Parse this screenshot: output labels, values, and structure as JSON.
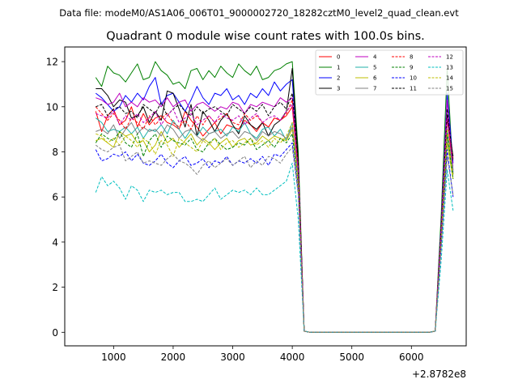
{
  "figure": {
    "suptitle": "Data file: modeM0/AS1A06_006T01_9000002720_18282cztM0_level2_quad_clean.evt",
    "offset_text": "+2.8782e8"
  },
  "chart_data": {
    "type": "line",
    "title": "Quadrant 0 module wise count rates with 100.0s bins.",
    "xlabel": "",
    "ylabel": "",
    "x_offset": 287820000,
    "xlim": [
      180,
      6920
    ],
    "ylim": [
      -0.6,
      12.65
    ],
    "xticks": [
      1000,
      2000,
      3000,
      4000,
      5000,
      6000
    ],
    "yticks": [
      0,
      2,
      4,
      6,
      8,
      10,
      12
    ],
    "grid": false,
    "legend": {
      "location": "upper right",
      "columns": 4
    },
    "x": [
      700,
      800,
      900,
      1000,
      1100,
      1200,
      1300,
      1400,
      1500,
      1600,
      1700,
      1800,
      1900,
      2000,
      2100,
      2200,
      2300,
      2400,
      2500,
      2600,
      2700,
      2800,
      2900,
      3000,
      3100,
      3200,
      3300,
      3400,
      3500,
      3600,
      3700,
      3800,
      3900,
      4000,
      4100,
      4200,
      4300,
      4400,
      4500,
      4600,
      4700,
      4800,
      4900,
      5000,
      5100,
      5200,
      5300,
      5400,
      5500,
      5600,
      5700,
      5800,
      5900,
      6000,
      6100,
      6200,
      6300,
      6400,
      6500,
      6600,
      6700
    ],
    "series": [
      {
        "name": "0",
        "color": "#ff0000",
        "dash": false,
        "values": [
          9.8,
          8.9,
          9.6,
          9.9,
          9.2,
          9.4,
          10.0,
          9.1,
          9.7,
          9.2,
          9.5,
          9.6,
          9.3,
          9.2,
          9.0,
          9.8,
          9.4,
          9.1,
          8.7,
          9.0,
          9.3,
          8.8,
          9.2,
          9.1,
          9.0,
          9.4,
          9.2,
          8.9,
          9.3,
          9.1,
          9.5,
          9.4,
          9.6,
          10.0,
          7.0,
          0.05,
          0,
          0,
          0,
          0,
          0,
          0,
          0,
          0,
          0,
          0,
          0,
          0,
          0,
          0,
          0,
          0,
          0,
          0,
          0,
          0,
          0,
          0.05,
          4.5,
          9.5,
          7.2
        ]
      },
      {
        "name": "1",
        "color": "#008000",
        "dash": false,
        "values": [
          11.3,
          10.9,
          11.8,
          11.5,
          11.4,
          11.1,
          11.5,
          11.9,
          11.2,
          11.3,
          12.0,
          11.6,
          11.4,
          11.0,
          11.1,
          10.8,
          11.6,
          11.7,
          11.2,
          11.6,
          11.3,
          11.8,
          11.5,
          11.3,
          11.9,
          11.6,
          11.4,
          11.8,
          11.2,
          11.3,
          11.6,
          11.7,
          11.9,
          12.0,
          8.0,
          0.05,
          0,
          0,
          0,
          0,
          0,
          0,
          0,
          0,
          0,
          0,
          0,
          0,
          0,
          0,
          0,
          0,
          0,
          0,
          0,
          0,
          0,
          0.05,
          5.2,
          11.7,
          7.0
        ]
      },
      {
        "name": "2",
        "color": "#0000ff",
        "dash": false,
        "values": [
          10.6,
          10.4,
          10.1,
          9.8,
          10.0,
          10.5,
          10.2,
          10.6,
          10.3,
          10.9,
          11.3,
          10.1,
          10.5,
          10.6,
          10.2,
          9.8,
          10.3,
          10.9,
          10.4,
          10.1,
          10.6,
          10.5,
          10.8,
          10.3,
          10.5,
          10.1,
          10.6,
          10.4,
          10.8,
          10.5,
          11.1,
          10.7,
          11.0,
          11.2,
          7.5,
          0.05,
          0,
          0,
          0,
          0,
          0,
          0,
          0,
          0,
          0,
          0,
          0,
          0,
          0,
          0,
          0,
          0,
          0,
          0,
          0,
          0,
          0,
          0.05,
          4.8,
          10.6,
          7.5
        ]
      },
      {
        "name": "3",
        "color": "#000000",
        "dash": false,
        "values": [
          10.8,
          10.8,
          10.5,
          10.0,
          10.3,
          10.2,
          9.5,
          9.6,
          10.0,
          9.3,
          9.8,
          9.4,
          10.7,
          10.6,
          9.9,
          9.1,
          10.1,
          8.7,
          9.8,
          9.4,
          8.9,
          9.4,
          9.7,
          9.2,
          8.8,
          9.6,
          9.2,
          9.0,
          9.3,
          8.7,
          9.2,
          9.4,
          9.8,
          11.7,
          7.6,
          0.05,
          0,
          0,
          0,
          0,
          0,
          0,
          0,
          0,
          0,
          0,
          0,
          0,
          0,
          0,
          0,
          0,
          0,
          0,
          0,
          0,
          0,
          0.05,
          4.5,
          9.6,
          7.8
        ]
      },
      {
        "name": "4",
        "color": "#bf00bf",
        "dash": false,
        "values": [
          10.4,
          10.3,
          10.1,
          10.2,
          10.6,
          10.0,
          10.2,
          10.0,
          10.4,
          10.2,
          10.3,
          10.0,
          10.4,
          10.0,
          10.2,
          10.3,
          9.8,
          10.1,
          10.2,
          10.0,
          9.8,
          10.0,
          9.9,
          10.2,
          10.1,
          9.7,
          10.1,
          10.0,
          10.2,
          10.1,
          10.0,
          10.4,
          10.2,
          10.4,
          7.2,
          0.05,
          0,
          0,
          0,
          0,
          0,
          0,
          0,
          0,
          0,
          0,
          0,
          0,
          0,
          0,
          0,
          0,
          0,
          0,
          0,
          0,
          0,
          0.05,
          4.7,
          10.3,
          7.1
        ]
      },
      {
        "name": "5",
        "color": "#20b2aa",
        "dash": false,
        "values": [
          9.5,
          9.3,
          8.9,
          9.0,
          8.9,
          9.1,
          8.8,
          9.1,
          8.6,
          9.0,
          8.9,
          9.2,
          8.8,
          9.4,
          9.0,
          8.6,
          9.0,
          8.7,
          9.1,
          8.8,
          8.9,
          9.0,
          8.7,
          9.1,
          8.9,
          9.3,
          8.8,
          8.6,
          9.0,
          9.1,
          8.7,
          9.0,
          8.5,
          9.3,
          6.8,
          0.05,
          0,
          0,
          0,
          0,
          0,
          0,
          0,
          0,
          0,
          0,
          0,
          0,
          0,
          0,
          0,
          0,
          0,
          0,
          0,
          0,
          0,
          0.05,
          4.3,
          9.0,
          7.1
        ]
      },
      {
        "name": "6",
        "color": "#bfbf00",
        "dash": false,
        "values": [
          8.5,
          8.6,
          8.4,
          8.2,
          8.9,
          8.7,
          8.8,
          8.4,
          8.5,
          8.0,
          8.3,
          8.9,
          8.4,
          8.6,
          8.2,
          8.5,
          8.8,
          8.3,
          8.6,
          8.4,
          8.1,
          8.4,
          8.6,
          8.2,
          8.5,
          8.6,
          8.3,
          8.4,
          8.7,
          8.5,
          8.7,
          8.6,
          8.5,
          9.0,
          6.6,
          0.05,
          0,
          0,
          0,
          0,
          0,
          0,
          0,
          0,
          0,
          0,
          0,
          0,
          0,
          0,
          0,
          0,
          0,
          0,
          0,
          0,
          0,
          0.05,
          4.0,
          8.4,
          6.8
        ]
      },
      {
        "name": "7",
        "color": "#808080",
        "dash": false,
        "values": [
          8.9,
          9.0,
          8.8,
          9.2,
          8.6,
          9.0,
          9.3,
          8.8,
          9.1,
          8.9,
          9.0,
          8.7,
          9.2,
          9.0,
          8.6,
          8.9,
          9.0,
          8.7,
          8.5,
          8.8,
          8.9,
          8.6,
          8.8,
          8.9,
          8.6,
          8.9,
          8.8,
          8.5,
          8.9,
          8.7,
          8.9,
          8.8,
          8.6,
          9.1,
          6.7,
          0.05,
          0,
          0,
          0,
          0,
          0,
          0,
          0,
          0,
          0,
          0,
          0,
          0,
          0,
          0,
          0,
          0,
          0,
          0,
          0,
          0,
          0,
          0.05,
          4.1,
          8.7,
          7.0
        ]
      },
      {
        "name": "8",
        "color": "#ff0000",
        "dash": true,
        "values": [
          10.0,
          9.7,
          9.4,
          9.7,
          9.4,
          9.0,
          9.5,
          9.3,
          9.0,
          9.6,
          9.2,
          9.5,
          9.7,
          9.3,
          9.1,
          9.4,
          9.0,
          9.6,
          9.2,
          9.6,
          9.3,
          9.5,
          9.7,
          9.3,
          9.2,
          9.7,
          9.4,
          9.6,
          9.3,
          9.1,
          9.5,
          9.4,
          9.7,
          10.3,
          7.3,
          0.05,
          0,
          0,
          0,
          0,
          0,
          0,
          0,
          0,
          0,
          0,
          0,
          0,
          0,
          0,
          0,
          0,
          0,
          0,
          0,
          0,
          0,
          0.05,
          4.5,
          9.4,
          7.7
        ]
      },
      {
        "name": "9",
        "color": "#008000",
        "dash": true,
        "values": [
          8.4,
          8.8,
          8.6,
          8.5,
          8.9,
          8.4,
          8.2,
          8.8,
          7.8,
          8.5,
          8.8,
          8.2,
          8.7,
          8.5,
          8.4,
          8.3,
          8.6,
          8.1,
          8.0,
          8.4,
          8.6,
          8.3,
          8.1,
          8.2,
          8.4,
          8.3,
          8.6,
          8.1,
          8.3,
          8.5,
          8.2,
          8.6,
          8.4,
          8.8,
          6.5,
          0.05,
          0,
          0,
          0,
          0,
          0,
          0,
          0,
          0,
          0,
          0,
          0,
          0,
          0,
          0,
          0,
          0,
          0,
          0,
          0,
          0,
          0,
          0.05,
          4.0,
          8.8,
          6.8
        ]
      },
      {
        "name": "10",
        "color": "#0000ff",
        "dash": true,
        "values": [
          8.1,
          7.6,
          7.7,
          7.9,
          7.8,
          8.0,
          7.6,
          7.9,
          7.5,
          7.4,
          7.6,
          7.9,
          7.5,
          7.3,
          7.6,
          7.8,
          7.4,
          7.5,
          7.7,
          7.3,
          7.6,
          7.5,
          7.8,
          7.4,
          7.6,
          7.5,
          7.7,
          7.5,
          7.8,
          7.4,
          7.9,
          7.8,
          8.1,
          8.4,
          6.2,
          0.05,
          0,
          0,
          0,
          0,
          0,
          0,
          0,
          0,
          0,
          0,
          0,
          0,
          0,
          0,
          0,
          0,
          0,
          0,
          0,
          0,
          0,
          0.05,
          3.8,
          8.1,
          6.0
        ]
      },
      {
        "name": "11",
        "color": "#000000",
        "dash": true,
        "values": [
          10.0,
          10.1,
          9.6,
          9.9,
          10.0,
          9.7,
          9.8,
          9.5,
          10.1,
          9.9,
          9.7,
          10.2,
          9.6,
          9.9,
          10.1,
          9.8,
          9.6,
          10.0,
          9.7,
          9.9,
          10.0,
          9.8,
          9.6,
          10.1,
          9.9,
          9.7,
          10.0,
          9.8,
          10.1,
          9.6,
          10.0,
          10.2,
          9.9,
          10.6,
          7.5,
          0.05,
          0,
          0,
          0,
          0,
          0,
          0,
          0,
          0,
          0,
          0,
          0,
          0,
          0,
          0,
          0,
          0,
          0,
          0,
          0,
          0,
          0,
          0.05,
          4.6,
          9.9,
          7.6
        ]
      },
      {
        "name": "12",
        "color": "#bf00bf",
        "dash": true,
        "values": [
          9.7,
          9.6,
          9.5,
          9.8,
          9.2,
          9.6,
          9.4,
          9.7,
          9.3,
          9.5,
          9.8,
          9.2,
          9.6,
          9.9,
          9.3,
          9.5,
          9.7,
          9.2,
          9.4,
          9.6,
          9.3,
          9.7,
          9.5,
          9.4,
          9.6,
          9.2,
          9.5,
          9.7,
          9.3,
          9.5,
          9.6,
          9.4,
          9.8,
          10.1,
          7.1,
          0.05,
          0,
          0,
          0,
          0,
          0,
          0,
          0,
          0,
          0,
          0,
          0,
          0,
          0,
          0,
          0,
          0,
          0,
          0,
          0,
          0,
          0,
          0.05,
          4.4,
          9.5,
          7.4
        ]
      },
      {
        "name": "13",
        "color": "#00bfbf",
        "dash": true,
        "values": [
          6.2,
          6.9,
          6.5,
          6.7,
          6.4,
          5.9,
          6.5,
          6.3,
          5.8,
          6.3,
          6.2,
          6.3,
          6.1,
          6.2,
          6.2,
          5.8,
          5.8,
          5.9,
          5.8,
          6.1,
          6.4,
          5.9,
          6.1,
          6.3,
          6.2,
          6.3,
          6.1,
          6.4,
          6.1,
          6.1,
          6.3,
          6.5,
          6.7,
          7.5,
          5.0,
          0.05,
          0,
          0,
          0,
          0,
          0,
          0,
          0,
          0,
          0,
          0,
          0,
          0,
          0,
          0,
          0,
          0,
          0,
          0,
          0,
          0,
          0,
          0.05,
          3.2,
          7.2,
          5.4
        ]
      },
      {
        "name": "14",
        "color": "#bfbf00",
        "dash": true,
        "values": [
          8.8,
          8.7,
          8.4,
          8.6,
          8.3,
          8.7,
          8.5,
          8.2,
          8.6,
          8.4,
          7.9,
          8.5,
          8.3,
          7.8,
          8.6,
          8.4,
          8.2,
          8.0,
          8.5,
          8.3,
          8.6,
          8.1,
          8.4,
          8.5,
          8.2,
          8.4,
          8.6,
          8.3,
          8.5,
          8.2,
          8.6,
          8.4,
          8.7,
          9.3,
          6.6,
          0.05,
          0,
          0,
          0,
          0,
          0,
          0,
          0,
          0,
          0,
          0,
          0,
          0,
          0,
          0,
          0,
          0,
          0,
          0,
          0,
          0,
          0,
          0.05,
          4.1,
          9.0,
          6.9
        ]
      },
      {
        "name": "15",
        "color": "#808080",
        "dash": true,
        "values": [
          8.3,
          8.1,
          8.0,
          8.2,
          8.3,
          7.6,
          7.8,
          8.0,
          7.5,
          7.6,
          7.5,
          7.4,
          7.7,
          7.9,
          7.6,
          7.5,
          7.3,
          7.0,
          7.4,
          7.6,
          7.3,
          7.5,
          7.7,
          7.4,
          7.6,
          7.8,
          7.3,
          7.6,
          7.4,
          7.8,
          7.7,
          7.5,
          7.9,
          8.2,
          6.1,
          0.05,
          0,
          0,
          0,
          0,
          0,
          0,
          0,
          0,
          0,
          0,
          0,
          0,
          0,
          0,
          0,
          0,
          0,
          0,
          0,
          0,
          0,
          0.05,
          3.8,
          7.8,
          6.1
        ]
      }
    ]
  }
}
